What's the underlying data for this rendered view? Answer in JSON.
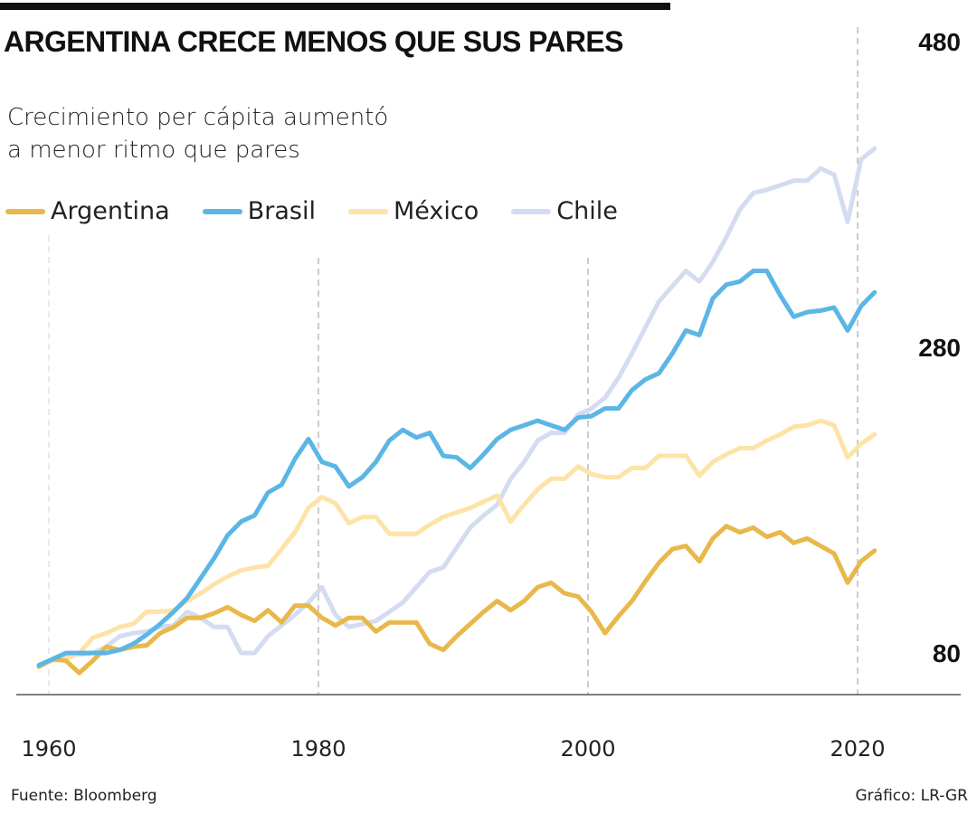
{
  "title": "ARGENTINA CRECE MENOS QUE SUS PARES",
  "subtitle_lines": [
    "Crecimiento per cápita aumentó",
    "a menor ritmo que pares"
  ],
  "source": "Fuente: Bloomberg",
  "credit": "Gráfico: LR-GR",
  "chart_data": {
    "type": "line",
    "title": "ARGENTINA CRECE MENOS QUE SUS PARES",
    "xlabel": "",
    "ylabel": "",
    "x_start": 1960,
    "x_end": 2022,
    "xlim": [
      1960,
      2022
    ],
    "ylim": [
      80,
      480
    ],
    "x_ticks": [
      "1960",
      "1980",
      "2000",
      "2020"
    ],
    "y_ticks": [
      "80",
      "280",
      "480"
    ],
    "y_axis_position": "right",
    "grid": "vertical dashed",
    "legend_position": "top-left",
    "series": [
      {
        "name": "Argentina",
        "color": "#e8b84a",
        "values": [
          71,
          76,
          75,
          67,
          75,
          84,
          82,
          84,
          85,
          93,
          97,
          103,
          103,
          106,
          110,
          105,
          101,
          108,
          100,
          111,
          111,
          103,
          98,
          103,
          103,
          94,
          100,
          100,
          100,
          86,
          82,
          91,
          99,
          107,
          114,
          108,
          114,
          123,
          126,
          119,
          117,
          107,
          93,
          104,
          114,
          127,
          139,
          148,
          150,
          140,
          155,
          163,
          159,
          162,
          156,
          159,
          152,
          155,
          150,
          145,
          126,
          140,
          147
        ]
      },
      {
        "name": "Brasil",
        "color": "#5bb6e6",
        "values": [
          72,
          76,
          80,
          80,
          80,
          80,
          82,
          86,
          92,
          99,
          107,
          116,
          129,
          142,
          157,
          166,
          170,
          185,
          190,
          207,
          220,
          205,
          202,
          189,
          195,
          205,
          219,
          226,
          221,
          224,
          209,
          208,
          201,
          210,
          220,
          226,
          229,
          232,
          229,
          226,
          234,
          235,
          240,
          240,
          252,
          259,
          263,
          276,
          291,
          288,
          312,
          321,
          323,
          330,
          330,
          314,
          300,
          303,
          304,
          306,
          291,
          307,
          316
        ]
      },
      {
        "name": "México",
        "color": "#fde3a7",
        "values": [
          72,
          75,
          76,
          80,
          90,
          93,
          97,
          99,
          107,
          107,
          108,
          114,
          119,
          125,
          130,
          134,
          136,
          137,
          148,
          159,
          175,
          182,
          178,
          165,
          169,
          169,
          158,
          158,
          158,
          164,
          169,
          172,
          175,
          179,
          183,
          166,
          177,
          187,
          194,
          194,
          202,
          197,
          195,
          195,
          201,
          201,
          209,
          209,
          209,
          196,
          205,
          210,
          214,
          214,
          219,
          223,
          228,
          229,
          232,
          229,
          208,
          217,
          223
        ]
      },
      {
        "name": "Chile",
        "color": "#d3dcf0",
        "values": [
          72,
          75,
          78,
          79,
          80,
          84,
          91,
          93,
          94,
          97,
          98,
          107,
          103,
          97,
          97,
          80,
          80,
          91,
          98,
          105,
          113,
          123,
          105,
          97,
          99,
          101,
          107,
          113,
          123,
          133,
          136,
          149,
          162,
          170,
          177,
          194,
          205,
          219,
          224,
          224,
          236,
          240,
          247,
          260,
          276,
          293,
          310,
          320,
          330,
          323,
          336,
          352,
          370,
          381,
          383,
          386,
          389,
          389,
          397,
          393,
          362,
          403,
          410
        ]
      }
    ]
  }
}
